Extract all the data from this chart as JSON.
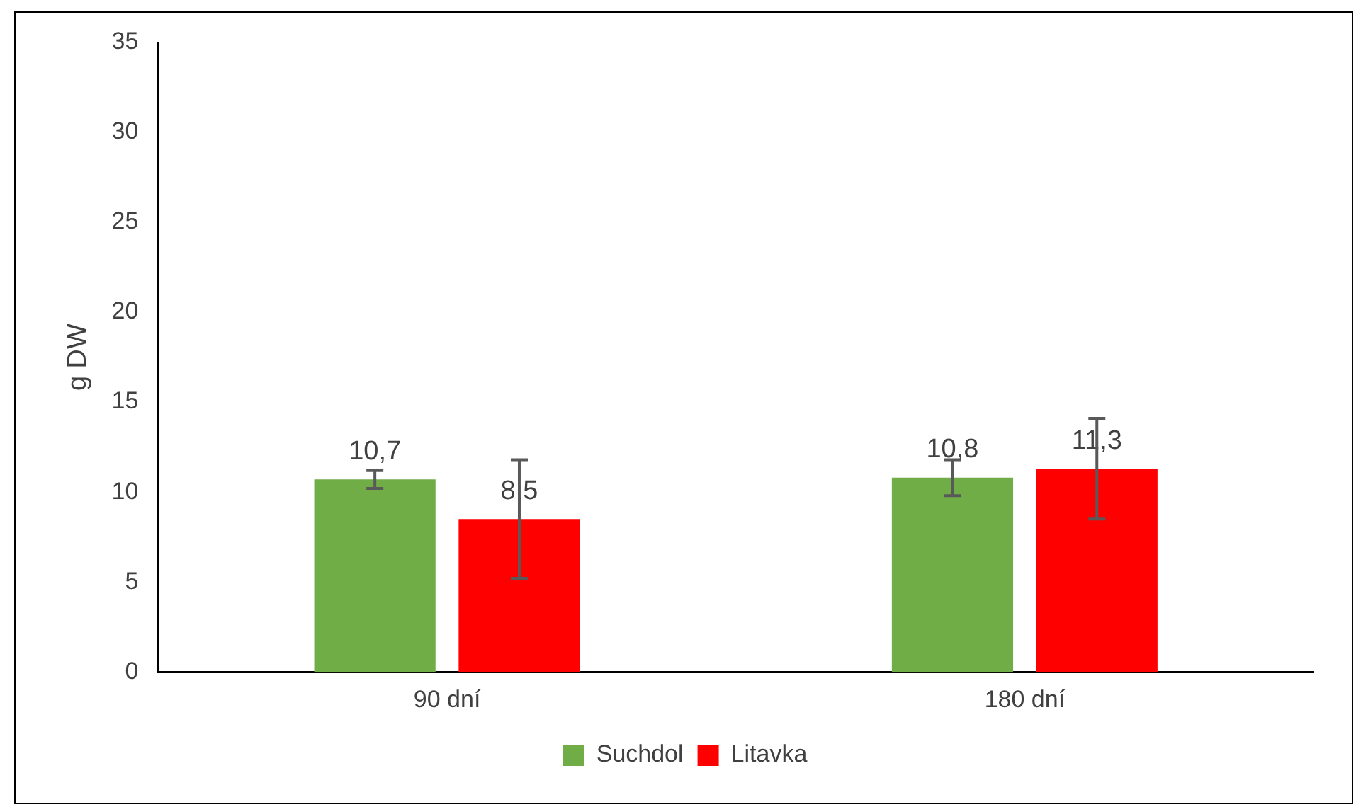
{
  "chart_data": {
    "type": "bar",
    "ylabel": "g DW",
    "categories": [
      "90 dní",
      "180 dní"
    ],
    "series": [
      {
        "name": "Suchdol",
        "color": "#70ad47",
        "values": [
          10.7,
          10.8
        ],
        "errors": [
          0.5,
          1.0
        ],
        "value_labels": [
          "10,7",
          "10,8"
        ]
      },
      {
        "name": "Litavka",
        "color": "#ff0000",
        "values": [
          8.5,
          11.3
        ],
        "errors": [
          3.3,
          2.8
        ],
        "value_labels": [
          "8,5",
          "11,3"
        ]
      }
    ],
    "ylim": [
      0,
      35
    ],
    "yticks": [
      0,
      5,
      10,
      15,
      20,
      25,
      30,
      35
    ],
    "grid": false,
    "legend": "bottom"
  }
}
